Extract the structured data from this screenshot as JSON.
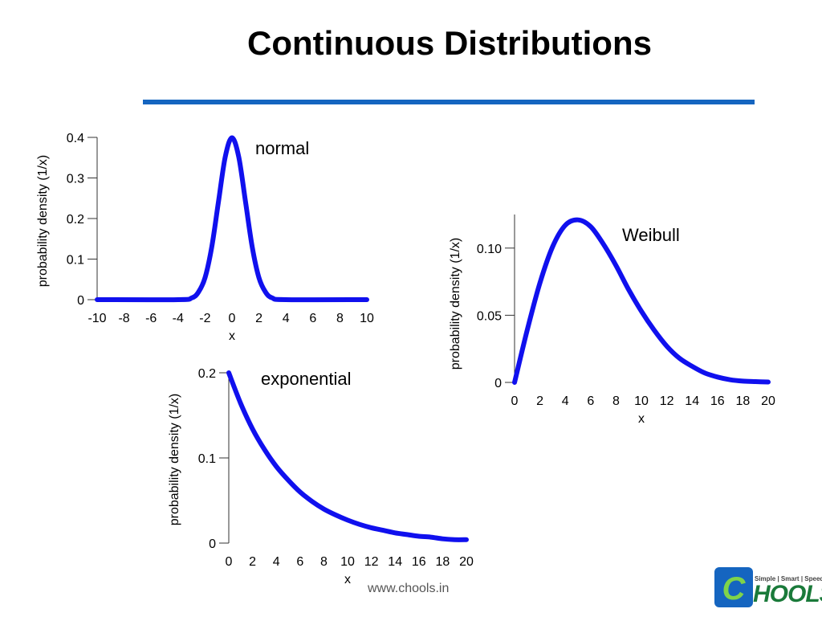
{
  "slide": {
    "title": "Continuous Distributions",
    "rule_color": "#1565c0",
    "footer_url": "www.chools.in"
  },
  "logo": {
    "tagline": "Simple | Smart | Speed",
    "wordmark": "HOOLS",
    "mark_letter": "C",
    "colors": {
      "mark": "#1565c0",
      "word": "#1a7a3a"
    }
  },
  "chart_data": [
    {
      "id": "normal",
      "type": "line",
      "title": "normal",
      "xlabel": "x",
      "ylabel": "probability density (1/x)",
      "xlim": [
        -10,
        10
      ],
      "ylim": [
        0,
        0.4
      ],
      "xticks": [
        "-10",
        "-8",
        "-6",
        "-4",
        "-2",
        "0",
        "2",
        "4",
        "6",
        "8",
        "10"
      ],
      "yticks": [
        "0",
        "0.1",
        "0.2",
        "0.3",
        "0.4"
      ],
      "xtick_values": [
        -10,
        -8,
        -6,
        -4,
        -2,
        0,
        2,
        4,
        6,
        8,
        10
      ],
      "ytick_values": [
        0,
        0.1,
        0.2,
        0.3,
        0.4
      ],
      "line_color": "#1010ee",
      "series": [
        {
          "x": [
            -10,
            -4,
            -3,
            -2.5,
            -2,
            -1.5,
            -1,
            -0.5,
            0,
            0.5,
            1,
            1.5,
            2,
            2.5,
            3,
            4,
            10
          ],
          "values": [
            0,
            0.0001,
            0.004,
            0.018,
            0.054,
            0.13,
            0.242,
            0.352,
            0.399,
            0.352,
            0.242,
            0.13,
            0.054,
            0.018,
            0.004,
            0.0001,
            0
          ]
        }
      ]
    },
    {
      "id": "weibull",
      "type": "line",
      "title": "Weibull",
      "xlabel": "x",
      "ylabel": "probability density (1/x)",
      "xlim": [
        0,
        20
      ],
      "ylim": [
        0,
        0.125
      ],
      "xticks": [
        "0",
        "2",
        "4",
        "6",
        "8",
        "10",
        "12",
        "14",
        "16",
        "18",
        "20"
      ],
      "yticks": [
        "0",
        "0.05",
        "0.10"
      ],
      "xtick_values": [
        0,
        2,
        4,
        6,
        8,
        10,
        12,
        14,
        16,
        18,
        20
      ],
      "ytick_values": [
        0,
        0.05,
        0.1
      ],
      "line_color": "#1010ee",
      "series": [
        {
          "x": [
            0,
            1,
            2,
            3,
            4,
            5,
            6,
            7,
            8,
            9,
            10,
            11,
            12,
            13,
            14,
            15,
            16,
            17,
            18,
            19,
            20
          ],
          "values": [
            0,
            0.039,
            0.074,
            0.101,
            0.117,
            0.121,
            0.116,
            0.103,
            0.087,
            0.069,
            0.053,
            0.039,
            0.027,
            0.018,
            0.012,
            0.007,
            0.004,
            0.002,
            0.001,
            0.0006,
            0.0003
          ]
        }
      ]
    },
    {
      "id": "exponential",
      "type": "line",
      "title": "exponential",
      "xlabel": "x",
      "ylabel": "probability density (1/x)",
      "xlim": [
        0,
        20
      ],
      "ylim": [
        0,
        0.2
      ],
      "xticks": [
        "0",
        "2",
        "4",
        "6",
        "8",
        "10",
        "12",
        "14",
        "16",
        "18",
        "20"
      ],
      "yticks": [
        "0",
        "0.1",
        "0.2"
      ],
      "xtick_values": [
        0,
        2,
        4,
        6,
        8,
        10,
        12,
        14,
        16,
        18,
        20
      ],
      "ytick_values": [
        0,
        0.1,
        0.2
      ],
      "line_color": "#1010ee",
      "series": [
        {
          "x": [
            0,
            1,
            2,
            3,
            4,
            5,
            6,
            7,
            8,
            9,
            10,
            11,
            12,
            13,
            14,
            15,
            16,
            17,
            18,
            19,
            20
          ],
          "values": [
            0.2,
            0.164,
            0.134,
            0.11,
            0.09,
            0.074,
            0.06,
            0.049,
            0.04,
            0.033,
            0.027,
            0.022,
            0.018,
            0.015,
            0.012,
            0.01,
            0.008,
            0.007,
            0.005,
            0.004,
            0.004
          ]
        }
      ]
    }
  ]
}
